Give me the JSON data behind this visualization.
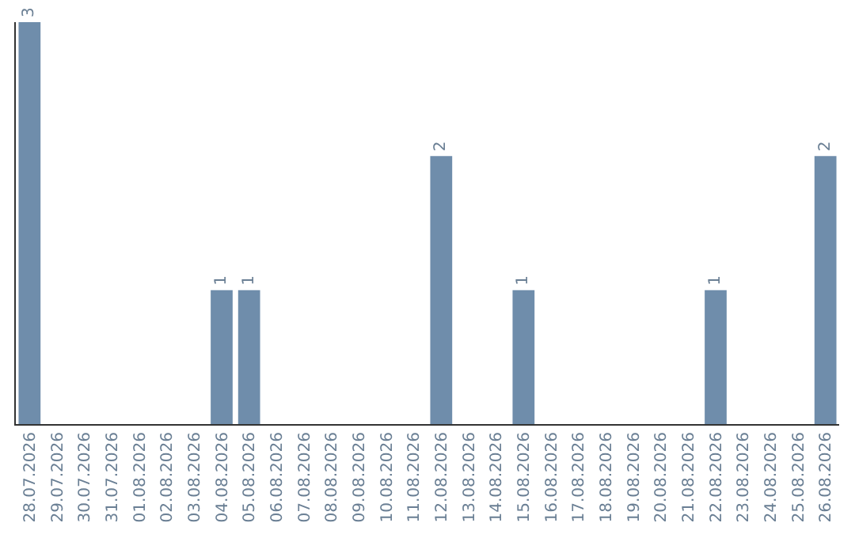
{
  "chart_data": {
    "type": "bar",
    "categories": [
      "28.07.2026",
      "29.07.2026",
      "30.07.2026",
      "31.07.2026",
      "01.08.2026",
      "02.08.2026",
      "03.08.2026",
      "04.08.2026",
      "05.08.2026",
      "06.08.2026",
      "07.08.2026",
      "08.08.2026",
      "09.08.2026",
      "10.08.2026",
      "11.08.2026",
      "12.08.2026",
      "13.08.2026",
      "14.08.2026",
      "15.08.2026",
      "16.08.2026",
      "17.08.2026",
      "18.08.2026",
      "19.08.2026",
      "20.08.2026",
      "21.08.2026",
      "22.08.2026",
      "23.08.2026",
      "24.08.2026",
      "25.08.2026",
      "26.08.2026"
    ],
    "values": [
      3,
      0,
      0,
      0,
      0,
      0,
      0,
      1,
      1,
      0,
      0,
      0,
      0,
      0,
      0,
      2,
      0,
      0,
      1,
      0,
      0,
      0,
      0,
      0,
      0,
      1,
      0,
      0,
      0,
      2
    ],
    "value_labels": [
      "3",
      null,
      null,
      null,
      null,
      null,
      null,
      "1",
      "1",
      null,
      null,
      null,
      null,
      null,
      null,
      "2",
      null,
      null,
      "1",
      null,
      null,
      null,
      null,
      null,
      null,
      "1",
      null,
      null,
      null,
      "2"
    ],
    "color": "#6f8dab",
    "tick_labels": "x"
  }
}
